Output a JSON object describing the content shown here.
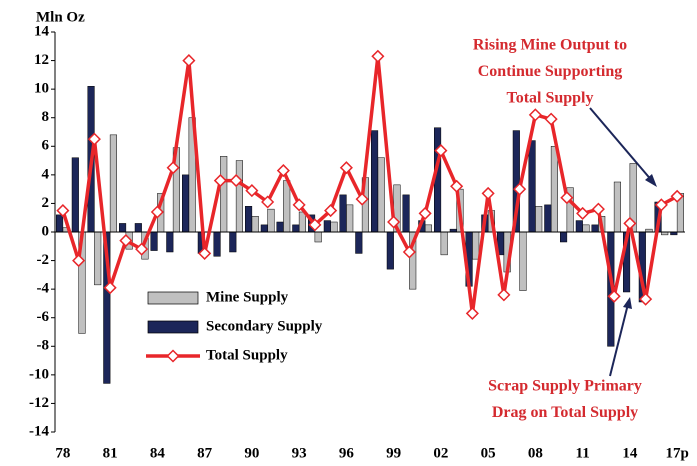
{
  "chart_data": {
    "type": "bar",
    "y_label": "Mln Oz",
    "categories": [
      "78",
      null,
      null,
      "81",
      null,
      null,
      "84",
      null,
      null,
      "87",
      null,
      null,
      "90",
      null,
      null,
      "93",
      null,
      null,
      "96",
      null,
      null,
      "99",
      null,
      null,
      "02",
      null,
      null,
      "05",
      null,
      null,
      "08",
      null,
      null,
      "11",
      null,
      null,
      "14",
      null,
      null,
      "17p"
    ],
    "series": [
      {
        "name": "Mine Supply",
        "type": "bar",
        "color": "#c0c0c0",
        "values": [
          0.3,
          -7.1,
          -3.7,
          6.8,
          -1.2,
          -1.9,
          2.7,
          5.9,
          8,
          0,
          5.3,
          5,
          1.1,
          1.6,
          3.6,
          1.4,
          -0.7,
          0.7,
          1.9,
          3.8,
          5.2,
          3.3,
          -4,
          0.5,
          -1.6,
          3,
          -1.9,
          1.5,
          -2.8,
          -4.1,
          1.8,
          6,
          3.1,
          0.5,
          1.1,
          3.5,
          4.8,
          0.2,
          -0.2,
          2.7
        ]
      },
      {
        "name": "Secondary Supply",
        "type": "bar",
        "color": "#1c2659",
        "values": [
          1.2,
          5.2,
          10.2,
          -10.6,
          0.6,
          0.6,
          -1.3,
          -1.4,
          4,
          -1.5,
          -1.7,
          -1.4,
          1.8,
          0.5,
          0.7,
          0.5,
          1.2,
          0.8,
          2.6,
          -1.5,
          7.1,
          -2.6,
          2.6,
          0.8,
          7.3,
          0.2,
          -3.8,
          1.2,
          -1.6,
          7.1,
          6.4,
          1.9,
          -0.7,
          0.8,
          0.5,
          -8,
          -4.2,
          -4.9,
          2.1,
          -0.2
        ]
      },
      {
        "name": "Total Supply",
        "type": "line",
        "color": "#e8262a",
        "values": [
          1.5,
          -2,
          6.5,
          -3.9,
          -0.6,
          -1.2,
          1.4,
          4.5,
          12,
          -1.5,
          3.6,
          3.6,
          2.9,
          2.1,
          4.3,
          1.9,
          0.5,
          1.5,
          4.5,
          2.3,
          12.3,
          0.7,
          -1.4,
          1.3,
          5.7,
          3.2,
          -5.7,
          2.7,
          -4.4,
          3,
          8.2,
          7.9,
          2.4,
          1.3,
          1.6,
          -4.5,
          0.6,
          -4.7,
          1.9,
          2.5
        ]
      }
    ],
    "ylim": [
      -14,
      14
    ],
    "yticks": [
      -14,
      -12,
      -10,
      -8,
      -6,
      -4,
      -2,
      0,
      2,
      4,
      6,
      8,
      10,
      12,
      14
    ],
    "grid": false,
    "legend": "lower-left",
    "annotations": [
      [
        "Rising Mine Output to",
        "Continue Supporting",
        "Total Supply"
      ],
      [
        "Scrap Supply Primary",
        "Drag on Total Supply"
      ]
    ]
  }
}
